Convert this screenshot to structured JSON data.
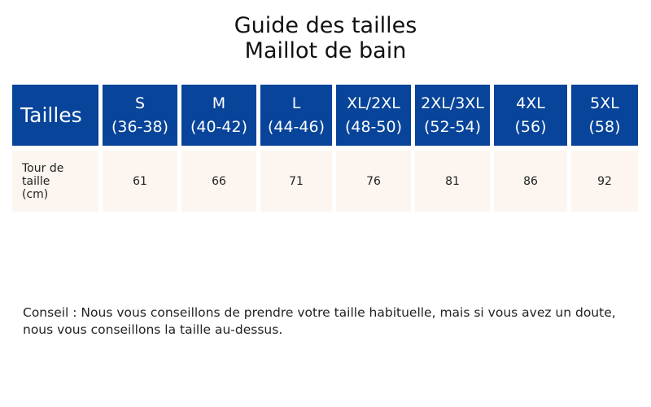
{
  "title": {
    "line1": "Guide des tailles",
    "line2": "Maillot de bain"
  },
  "table": {
    "row_header": "Tailles",
    "sizes": [
      {
        "name": "S",
        "range": "(36-38)"
      },
      {
        "name": "M",
        "range": "(40-42)"
      },
      {
        "name": "L",
        "range": "(44-46)"
      },
      {
        "name": "XL/2XL",
        "range": "(48-50)"
      },
      {
        "name": "2XL/3XL",
        "range": "(52-54)"
      },
      {
        "name": "4XL",
        "range": "(56)"
      },
      {
        "name": "5XL",
        "range": "(58)"
      }
    ],
    "measure_label": [
      "Tour de",
      "taille",
      "(cm)"
    ],
    "values": [
      "61",
      "66",
      "71",
      "76",
      "81",
      "86",
      "92"
    ]
  },
  "advice": "Conseil : Nous vous conseillons de prendre votre taille habituelle, mais si vous avez un doute, nous vous conseillons la taille au-dessus.",
  "colors": {
    "header_bg": "#07449a",
    "cell_bg": "#fdf6f0"
  }
}
